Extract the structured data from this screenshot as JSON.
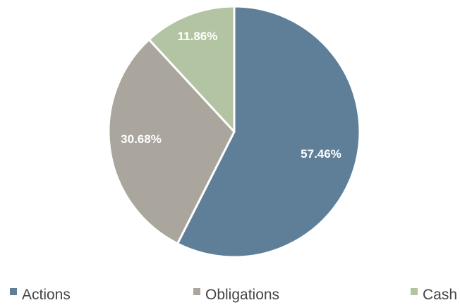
{
  "chart_data": {
    "type": "pie",
    "title": "",
    "legend_position": "bottom",
    "slices": [
      {
        "name": "Actions",
        "value": 57.46,
        "label": "57.46%",
        "color": "#5f7f99"
      },
      {
        "name": "Obligations",
        "value": 30.68,
        "label": "30.68%",
        "color": "#aaa59d"
      },
      {
        "name": "Cash",
        "value": 11.86,
        "label": "11.86%",
        "color": "#b2c4a2"
      }
    ]
  }
}
